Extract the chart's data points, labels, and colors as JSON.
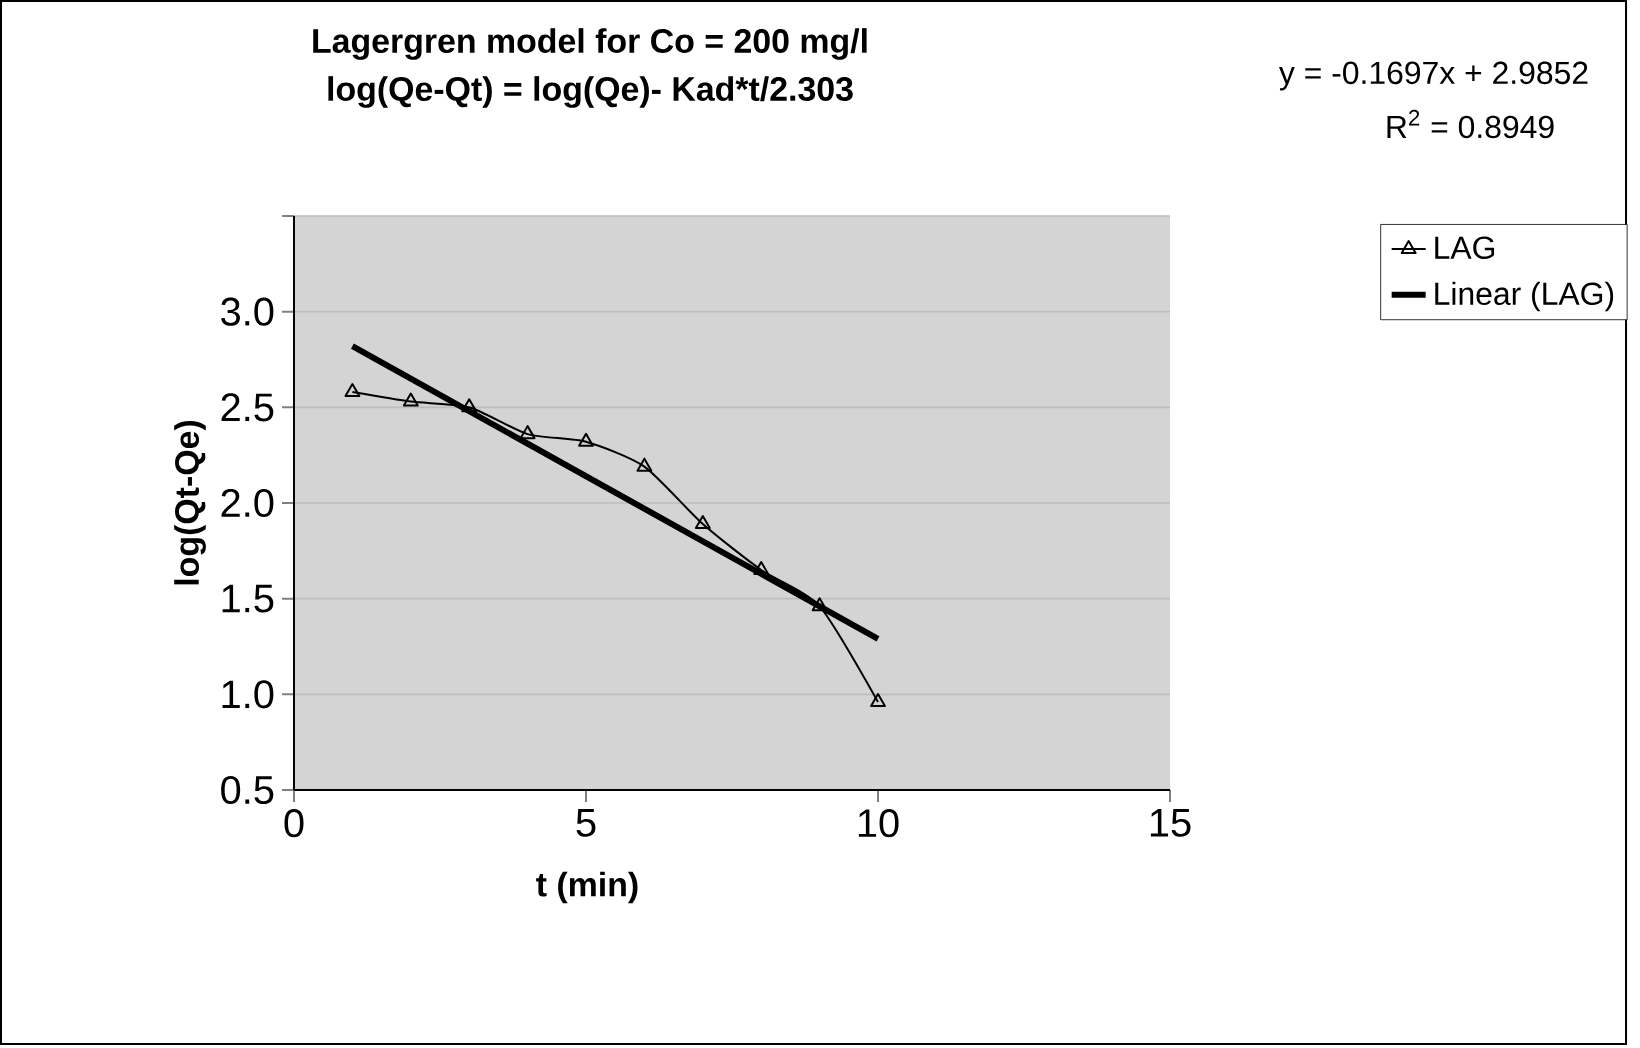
{
  "chart_data": {
    "type": "line",
    "title": "Lagergren model for Co = 200 mg/l",
    "subtitle": "log(Qe-Qt) = log(Qe)- Kad*t/2.303",
    "xlabel": "t (min)",
    "ylabel": "log(Qt-Qe)",
    "annotations": [
      "y = -0.1697x + 2.9852",
      "R$^{2}$ = 0.8949"
    ],
    "series": [
      {
        "name": "LAG",
        "color": "#000000",
        "marker": "triangle",
        "x": [
          1,
          2,
          3,
          4,
          5,
          6,
          7,
          8,
          9,
          10
        ],
        "values": [
          2.58,
          2.53,
          2.5,
          2.36,
          2.32,
          2.19,
          1.89,
          1.65,
          1.46,
          0.96
        ]
      },
      {
        "name": "Linear (LAG)",
        "color": "#000000",
        "marker": "none",
        "x": [
          1,
          10
        ],
        "values": [
          2.82,
          1.29
        ]
      }
    ],
    "xlim": [
      0,
      15
    ],
    "xticks": [
      0,
      5,
      10,
      15
    ],
    "ylim": [
      0.5,
      3.5
    ],
    "yticks": [
      0.5,
      {
        "value": 1,
        "label": "1.0"
      },
      1.5,
      {
        "value": 2,
        "label": "2.0"
      },
      2.5,
      {
        "value": 3,
        "label": "3.0"
      },
      {
        "value": 3.5,
        "label": null
      }
    ],
    "grid": "y",
    "legend": "right"
  }
}
